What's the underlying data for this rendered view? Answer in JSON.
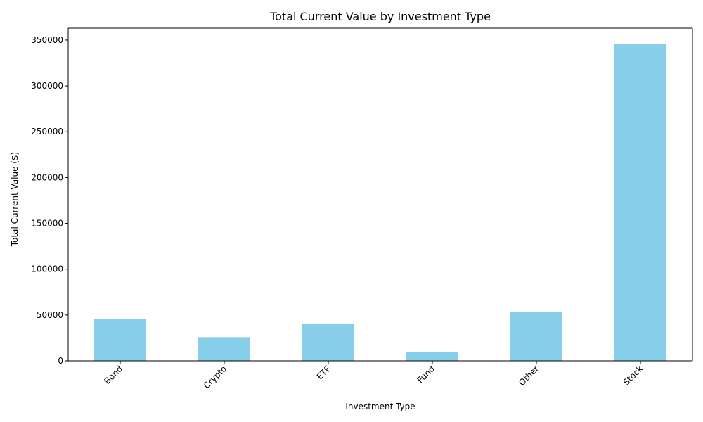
{
  "chart_data": {
    "type": "bar",
    "title": "Total Current Value by Investment Type",
    "xlabel": "Investment Type",
    "ylabel": "Total Current Value ($)",
    "categories": [
      "Bond",
      "Crypto",
      "ETF",
      "Fund",
      "Other",
      "Stock"
    ],
    "values": [
      45500,
      25800,
      40500,
      9800,
      53500,
      345500
    ],
    "ylim": [
      0,
      363000
    ],
    "yticks": [
      0,
      50000,
      100000,
      150000,
      200000,
      250000,
      300000,
      350000
    ],
    "bar_color": "#87ceeb",
    "grid": false,
    "legend": "none"
  }
}
